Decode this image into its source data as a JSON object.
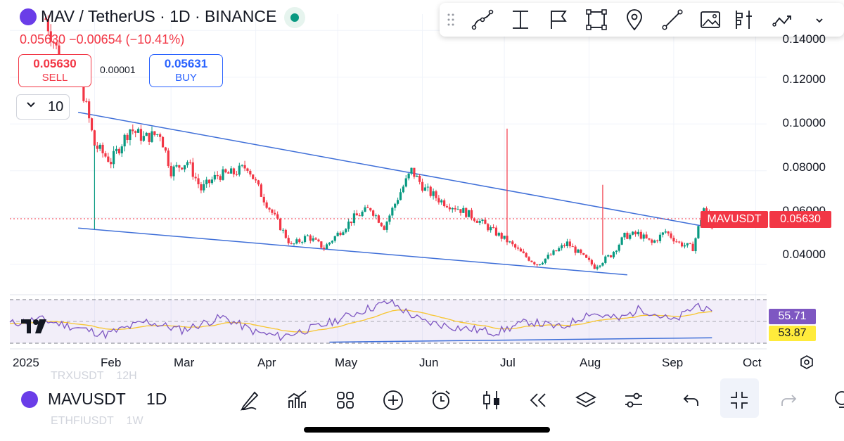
{
  "header": {
    "symbol_title": "MAV / TetherUS · 1D · BINANCE",
    "change_text": "0.05630 −0.00654 (−10.41%)"
  },
  "trade": {
    "sell_price": "0.05630",
    "sell_label": "SELL",
    "spread": "0.00001",
    "buy_price": "0.05631",
    "buy_label": "BUY"
  },
  "indicators": {
    "toggle_icon": "chevron-down-icon",
    "count": "10"
  },
  "drawing_toolbar": {
    "tools": [
      "curve-icon",
      "text-cursor-icon",
      "flag-icon",
      "rectangle-icon",
      "location-pin-icon",
      "trend-line-icon",
      "image-icon",
      "long-short-position-icon",
      "forecast-icon"
    ]
  },
  "price_axis": {
    "labels": [
      "0.14000",
      "0.12000",
      "0.10000",
      "0.08000",
      "0.06000",
      "0.04000"
    ],
    "symbol_tag": "MAVUSDT",
    "last_price_tag": "0.05630"
  },
  "oscillator": {
    "rsi_value": "55.71",
    "rsi_ma_value": "53.87"
  },
  "time_axis": {
    "labels": [
      "2025",
      "Feb",
      "Mar",
      "Apr",
      "May",
      "Jun",
      "Jul",
      "Aug",
      "Sep",
      "Oct"
    ]
  },
  "bottom_bar": {
    "symbol": "MAVUSDT",
    "interval": "1D",
    "ghost_top_symbol": "TRXUSDT",
    "ghost_top_interval": "12H",
    "ghost_bottom_symbol": "ETHFIUSDT",
    "ghost_bottom_interval": "1W",
    "tools": [
      "pencil-icon",
      "indicators-icon",
      "grid-icon",
      "add-circle-icon",
      "alarm-clock-icon",
      "candles-icon",
      "replay-icon",
      "layers-icon",
      "settings-sliders-icon",
      "undo-icon",
      "collapse-icon",
      "redo-icon",
      "more-icon"
    ]
  },
  "chart_data": {
    "type": "candlestick",
    "interval": "1D",
    "x_range": [
      "2025-01-01",
      "2025-10-05"
    ],
    "y_range": [
      0.027,
      0.147
    ],
    "last_price": 0.0563,
    "y_ticks": [
      0.14,
      0.12,
      0.1,
      0.08,
      0.06,
      0.04
    ],
    "trendlines": [
      {
        "from": [
          "2025-01-26",
          0.105
        ],
        "to": [
          "2025-09-12",
          0.0563
        ]
      },
      {
        "from": [
          "2025-01-26",
          0.0555
        ],
        "to": [
          "2025-08-15",
          0.0355
        ]
      }
    ],
    "close_path": [
      [
        "2025-01-14",
        0.145
      ],
      [
        "2025-01-20",
        0.126
      ],
      [
        "2025-01-27",
        0.118
      ],
      [
        "2025-02-01",
        0.091
      ],
      [
        "2025-02-07",
        0.084
      ],
      [
        "2025-02-14",
        0.098
      ],
      [
        "2025-02-19",
        0.094
      ],
      [
        "2025-02-25",
        0.096
      ],
      [
        "2025-03-01",
        0.08
      ],
      [
        "2025-03-07",
        0.084
      ],
      [
        "2025-03-12",
        0.072
      ],
      [
        "2025-03-18",
        0.078
      ],
      [
        "2025-03-24",
        0.079
      ],
      [
        "2025-03-29",
        0.082
      ],
      [
        "2025-04-03",
        0.07
      ],
      [
        "2025-04-09",
        0.058
      ],
      [
        "2025-04-14",
        0.048
      ],
      [
        "2025-04-20",
        0.052
      ],
      [
        "2025-04-26",
        0.047
      ],
      [
        "2025-05-01",
        0.053
      ],
      [
        "2025-05-07",
        0.06
      ],
      [
        "2025-05-13",
        0.064
      ],
      [
        "2025-05-18",
        0.056
      ],
      [
        "2025-05-24",
        0.071
      ],
      [
        "2025-05-28",
        0.08
      ],
      [
        "2025-06-02",
        0.072
      ],
      [
        "2025-06-08",
        0.067
      ],
      [
        "2025-06-14",
        0.064
      ],
      [
        "2025-06-20",
        0.06
      ],
      [
        "2025-06-26",
        0.055
      ],
      [
        "2025-07-02",
        0.05
      ],
      [
        "2025-07-08",
        0.044
      ],
      [
        "2025-07-13",
        0.04
      ],
      [
        "2025-07-18",
        0.044
      ],
      [
        "2025-07-24",
        0.049
      ],
      [
        "2025-07-29",
        0.044
      ],
      [
        "2025-08-03",
        0.039
      ],
      [
        "2025-08-09",
        0.044
      ],
      [
        "2025-08-14",
        0.052
      ],
      [
        "2025-08-19",
        0.053
      ],
      [
        "2025-08-24",
        0.049
      ],
      [
        "2025-08-29",
        0.054
      ],
      [
        "2025-09-03",
        0.049
      ],
      [
        "2025-09-08",
        0.047
      ],
      [
        "2025-09-12",
        0.064
      ],
      [
        "2025-09-15",
        0.0563
      ]
    ],
    "wick_spikes": [
      [
        "2025-07-02",
        0.098
      ],
      [
        "2025-08-06",
        0.074
      ],
      [
        "2025-02-01",
        0.055
      ]
    ],
    "rsi_path": [
      [
        "2025-01-01",
        48
      ],
      [
        "2025-01-12",
        52
      ],
      [
        "2025-01-26",
        44
      ],
      [
        "2025-02-05",
        38
      ],
      [
        "2025-02-20",
        50
      ],
      [
        "2025-03-05",
        42
      ],
      [
        "2025-03-20",
        54
      ],
      [
        "2025-04-01",
        40
      ],
      [
        "2025-04-10",
        36
      ],
      [
        "2025-04-25",
        46
      ],
      [
        "2025-05-10",
        60
      ],
      [
        "2025-05-20",
        68
      ],
      [
        "2025-06-01",
        50
      ],
      [
        "2025-06-15",
        44
      ],
      [
        "2025-06-28",
        40
      ],
      [
        "2025-07-10",
        50
      ],
      [
        "2025-07-22",
        44
      ],
      [
        "2025-08-01",
        58
      ],
      [
        "2025-08-12",
        52
      ],
      [
        "2025-08-20",
        62
      ],
      [
        "2025-09-01",
        50
      ],
      [
        "2025-09-10",
        66
      ],
      [
        "2025-09-15",
        55.71
      ]
    ],
    "rsi_range": [
      30,
      70
    ]
  }
}
